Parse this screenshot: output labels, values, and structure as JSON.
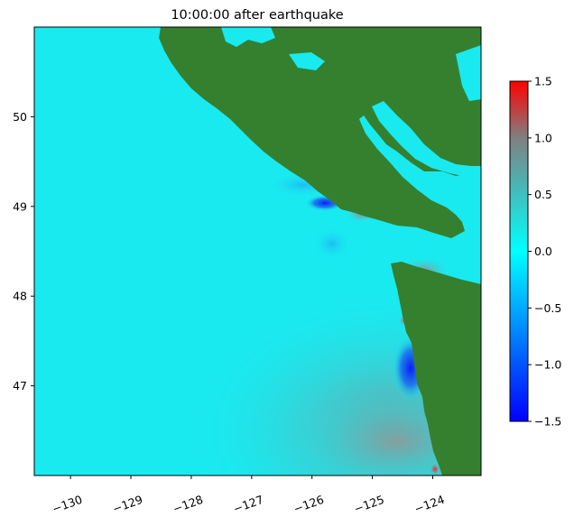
{
  "chart_data": {
    "type": "heatmap",
    "title": "10:00:00 after earthquake",
    "xlabel": "",
    "ylabel": "",
    "xlim": [
      -130.6,
      -123.2
    ],
    "ylim": [
      46.0,
      51.0
    ],
    "x_ticks": [
      {
        "value": -130,
        "label": "−130"
      },
      {
        "value": -129,
        "label": "−129"
      },
      {
        "value": -128,
        "label": "−128"
      },
      {
        "value": -127,
        "label": "−127"
      },
      {
        "value": -126,
        "label": "−126"
      },
      {
        "value": -125,
        "label": "−125"
      },
      {
        "value": -124,
        "label": "−124"
      }
    ],
    "y_ticks": [
      {
        "value": 50,
        "label": "50"
      },
      {
        "value": 49,
        "label": "49"
      },
      {
        "value": 48,
        "label": "48"
      },
      {
        "value": 47,
        "label": "47"
      }
    ],
    "colorbar": {
      "min": -1.5,
      "max": 1.5,
      "ticks": [
        {
          "value": 1.5,
          "label": "1.5"
        },
        {
          "value": 1.0,
          "label": "1.0"
        },
        {
          "value": 0.5,
          "label": "0.5"
        },
        {
          "value": 0.0,
          "label": "0.0"
        },
        {
          "value": -0.5,
          "label": "−0.5"
        },
        {
          "value": -1.0,
          "label": "−1.0"
        },
        {
          "value": -1.5,
          "label": "−1.5"
        }
      ],
      "colors": [
        "#0000ff",
        "#00ffff",
        "#808080",
        "#ff0000"
      ]
    },
    "land_color": "#35802f",
    "water_base_color": "#19eaf0",
    "grid": false,
    "legend": "none"
  }
}
